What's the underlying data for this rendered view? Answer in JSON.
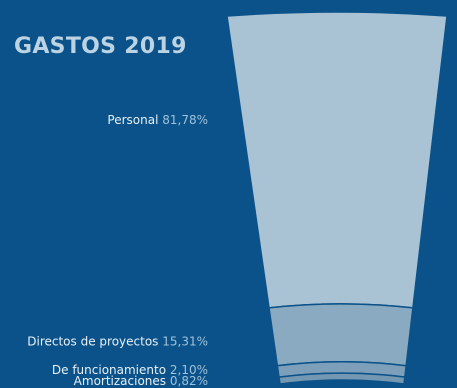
{
  "title": "GASTOS 2019",
  "colors": {
    "background": "#0a5289",
    "title": "#bcd3e3",
    "label": "#e8f0f6",
    "percent": "#9fc1da",
    "segment_border": "#0a5289"
  },
  "chart_data": {
    "type": "funnel",
    "title": "GASTOS 2019",
    "unit": "%",
    "segments": [
      {
        "name": "Personal",
        "value": 81.78,
        "label_value": "81,78%",
        "color": "#a9c2d4"
      },
      {
        "name": "Directos de proyectos",
        "value": 15.31,
        "label_value": "15,31%",
        "color": "#8aaac1"
      },
      {
        "name": "De funcionamiento",
        "value": 2.1,
        "label_value": "2,10%",
        "color": "#7d9fb9"
      },
      {
        "name": "Amortizaciones",
        "value": 0.82,
        "label_value": "0,82%",
        "color": "#7497b2"
      }
    ]
  }
}
